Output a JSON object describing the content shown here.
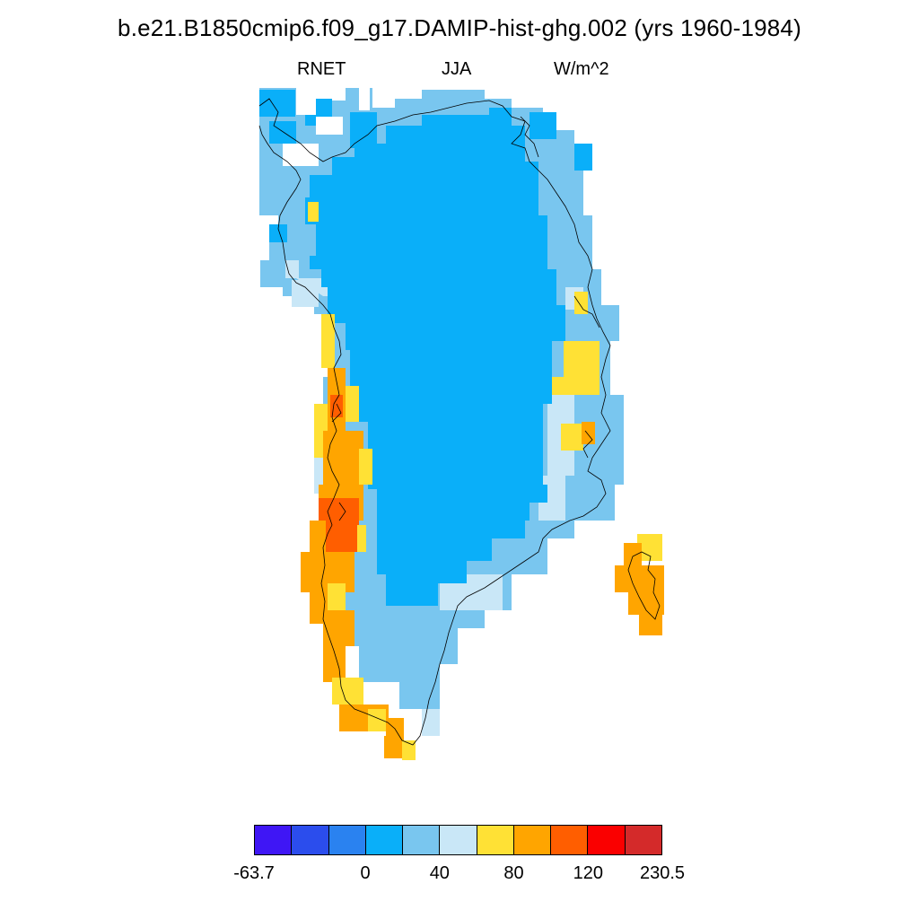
{
  "header": {
    "title": "b.e21.B1850cmip6.f09_g17.DAMIP-hist-ghg.002 (yrs 1960-1984)",
    "variable": "RNET",
    "season": "JJA",
    "units": "W/m^2"
  },
  "colorbar": {
    "colors": [
      "#3f16f5",
      "#2b4ded",
      "#2a82f0",
      "#0aaff9",
      "#79c6ef",
      "#c9e7f7",
      "#ffe135",
      "#ffa500",
      "#ff5e00",
      "#fa0000",
      "#d42a2a"
    ],
    "labels": [
      {
        "text": "-63.7",
        "index": 0
      },
      {
        "text": "0",
        "index": 3
      },
      {
        "text": "40",
        "index": 5
      },
      {
        "text": "80",
        "index": 7
      },
      {
        "text": "120",
        "index": 9
      },
      {
        "text": "230.5",
        "index": 11
      }
    ]
  },
  "map_legend_colors": {
    "deep_blue": "#0aaff9",
    "light_blue": "#79c6ef",
    "pale_blue": "#c9e7f7",
    "yellow": "#ffe135",
    "orange": "#ffa500",
    "dark_orange": "#ff5e00"
  }
}
